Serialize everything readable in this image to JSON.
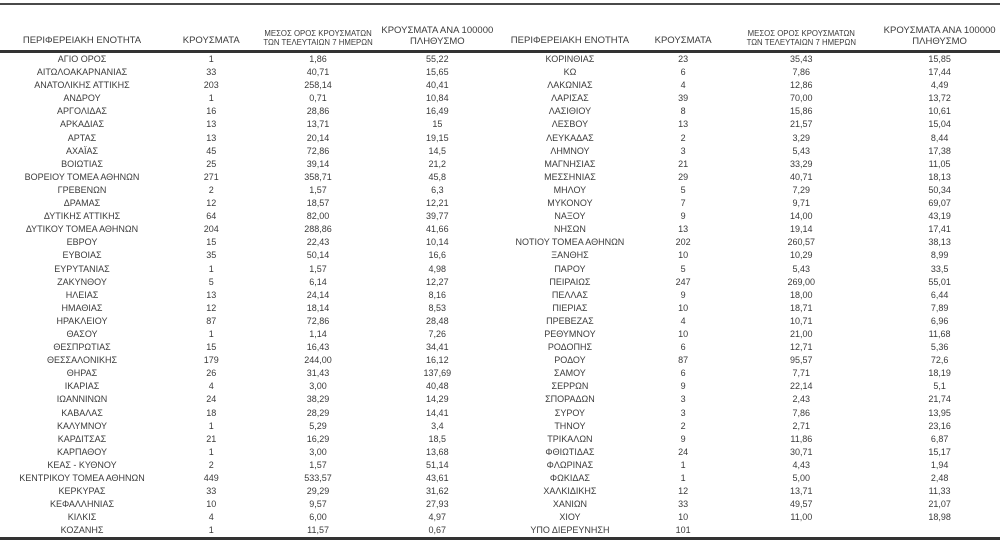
{
  "page": {
    "background_color": "#ffffff",
    "text_color": "#3b3b3b",
    "rule_color": "#333333"
  },
  "header": {
    "col1": "ΠΕΡΙΦΕΡΕΙΑΚΗ ΕΝΟΤΗΤΑ",
    "col2": "ΚΡΟΥΣΜΑΤΑ",
    "col3_line1": "ΜΕΣΟΣ ΟΡΟΣ ΚΡΟΥΣΜΑΤΩΝ",
    "col3_line2": "ΤΩΝ ΤΕΛΕΥΤΑΙΩΝ 7 ΗΜΕΡΩΝ",
    "col4_line1": "ΚΡΟΥΣΜΑΤΑ ΑΝΑ 100000",
    "col4_line2": "ΠΛΗΘΥΣΜΟ"
  },
  "tables": [
    {
      "rows": [
        [
          "ΑΓΙΟ ΟΡΟΣ",
          "1",
          "1,86",
          "55,22"
        ],
        [
          "ΑΙΤΩΛΟΑΚΑΡΝΑΝΙΑΣ",
          "33",
          "40,71",
          "15,65"
        ],
        [
          "ΑΝΑΤΟΛΙΚΗΣ ΑΤΤΙΚΗΣ",
          "203",
          "258,14",
          "40,41"
        ],
        [
          "ΑΝΔΡΟΥ",
          "1",
          "0,71",
          "10,84"
        ],
        [
          "ΑΡΓΟΛΙΔΑΣ",
          "16",
          "28,86",
          "16,49"
        ],
        [
          "ΑΡΚΑΔΙΑΣ",
          "13",
          "13,71",
          "15"
        ],
        [
          "ΑΡΤΑΣ",
          "13",
          "20,14",
          "19,15"
        ],
        [
          "ΑΧΑΪΑΣ",
          "45",
          "72,86",
          "14,5"
        ],
        [
          "ΒΟΙΩΤΙΑΣ",
          "25",
          "39,14",
          "21,2"
        ],
        [
          "ΒΟΡΕΙΟΥ ΤΟΜΕΑ ΑΘΗΝΩΝ",
          "271",
          "358,71",
          "45,8"
        ],
        [
          "ΓΡΕΒΕΝΩΝ",
          "2",
          "1,57",
          "6,3"
        ],
        [
          "ΔΡΑΜΑΣ",
          "12",
          "18,57",
          "12,21"
        ],
        [
          "ΔΥΤΙΚΗΣ ΑΤΤΙΚΗΣ",
          "64",
          "82,00",
          "39,77"
        ],
        [
          "ΔΥΤΙΚΟΥ ΤΟΜΕΑ ΑΘΗΝΩΝ",
          "204",
          "288,86",
          "41,66"
        ],
        [
          "ΕΒΡΟΥ",
          "15",
          "22,43",
          "10,14"
        ],
        [
          "ΕΥΒΟΙΑΣ",
          "35",
          "50,14",
          "16,6"
        ],
        [
          "ΕΥΡΥΤΑΝΙΑΣ",
          "1",
          "1,57",
          "4,98"
        ],
        [
          "ΖΑΚΥΝΘΟΥ",
          "5",
          "6,14",
          "12,27"
        ],
        [
          "ΗΛΕΙΑΣ",
          "13",
          "24,14",
          "8,16"
        ],
        [
          "ΗΜΑΘΙΑΣ",
          "12",
          "18,14",
          "8,53"
        ],
        [
          "ΗΡΑΚΛΕΙΟΥ",
          "87",
          "72,86",
          "28,48"
        ],
        [
          "ΘΑΣΟΥ",
          "1",
          "1,14",
          "7,26"
        ],
        [
          "ΘΕΣΠΡΩΤΙΑΣ",
          "15",
          "16,43",
          "34,41"
        ],
        [
          "ΘΕΣΣΑΛΟΝΙΚΗΣ",
          "179",
          "244,00",
          "16,12"
        ],
        [
          "ΘΗΡΑΣ",
          "26",
          "31,43",
          "137,69"
        ],
        [
          "ΙΚΑΡΙΑΣ",
          "4",
          "3,00",
          "40,48"
        ],
        [
          "ΙΩΑΝΝΙΝΩΝ",
          "24",
          "38,29",
          "14,29"
        ],
        [
          "ΚΑΒΑΛΑΣ",
          "18",
          "28,29",
          "14,41"
        ],
        [
          "ΚΑΛΥΜΝΟΥ",
          "1",
          "5,29",
          "3,4"
        ],
        [
          "ΚΑΡΔΙΤΣΑΣ",
          "21",
          "16,29",
          "18,5"
        ],
        [
          "ΚΑΡΠΑΘΟΥ",
          "1",
          "3,00",
          "13,68"
        ],
        [
          "ΚΕΑΣ - ΚΥΘΝΟΥ",
          "2",
          "1,57",
          "51,14"
        ],
        [
          "ΚΕΝΤΡΙΚΟΥ ΤΟΜΕΑ ΑΘΗΝΩΝ",
          "449",
          "533,57",
          "43,61"
        ],
        [
          "ΚΕΡΚΥΡΑΣ",
          "33",
          "29,29",
          "31,62"
        ],
        [
          "ΚΕΦΑΛΛΗΝΙΑΣ",
          "10",
          "9,57",
          "27,93"
        ],
        [
          "ΚΙΛΚΙΣ",
          "4",
          "6,00",
          "4,97"
        ],
        [
          "ΚΟΖΑΝΗΣ",
          "1",
          "11,57",
          "0,67"
        ]
      ]
    },
    {
      "rows": [
        [
          "ΚΟΡΙΝΘΙΑΣ",
          "23",
          "35,43",
          "15,85"
        ],
        [
          "ΚΩ",
          "6",
          "7,86",
          "17,44"
        ],
        [
          "ΛΑΚΩΝΙΑΣ",
          "4",
          "12,86",
          "4,49"
        ],
        [
          "ΛΑΡΙΣΑΣ",
          "39",
          "70,00",
          "13,72"
        ],
        [
          "ΛΑΣΙΘΙΟΥ",
          "8",
          "15,86",
          "10,61"
        ],
        [
          "ΛΕΣΒΟΥ",
          "13",
          "21,57",
          "15,04"
        ],
        [
          "ΛΕΥΚΑΔΑΣ",
          "2",
          "3,29",
          "8,44"
        ],
        [
          "ΛΗΜΝΟΥ",
          "3",
          "5,43",
          "17,38"
        ],
        [
          "ΜΑΓΝΗΣΙΑΣ",
          "21",
          "33,29",
          "11,05"
        ],
        [
          "ΜΕΣΣΗΝΙΑΣ",
          "29",
          "40,71",
          "18,13"
        ],
        [
          "ΜΗΛΟΥ",
          "5",
          "7,29",
          "50,34"
        ],
        [
          "ΜΥΚΟΝΟΥ",
          "7",
          "9,71",
          "69,07"
        ],
        [
          "ΝΑΞΟΥ",
          "9",
          "14,00",
          "43,19"
        ],
        [
          "ΝΗΣΩΝ",
          "13",
          "19,14",
          "17,41"
        ],
        [
          "ΝΟΤΙΟΥ ΤΟΜΕΑ ΑΘΗΝΩΝ",
          "202",
          "260,57",
          "38,13"
        ],
        [
          "ΞΑΝΘΗΣ",
          "10",
          "10,29",
          "8,99"
        ],
        [
          "ΠΑΡΟΥ",
          "5",
          "5,43",
          "33,5"
        ],
        [
          "ΠΕΙΡΑΙΩΣ",
          "247",
          "269,00",
          "55,01"
        ],
        [
          "ΠΕΛΛΑΣ",
          "9",
          "18,00",
          "6,44"
        ],
        [
          "ΠΙΕΡΙΑΣ",
          "10",
          "18,71",
          "7,89"
        ],
        [
          "ΠΡΕΒΕΖΑΣ",
          "4",
          "10,71",
          "6,96"
        ],
        [
          "ΡΕΘΥΜΝΟΥ",
          "10",
          "21,00",
          "11,68"
        ],
        [
          "ΡΟΔΟΠΗΣ",
          "6",
          "12,71",
          "5,36"
        ],
        [
          "ΡΟΔΟΥ",
          "87",
          "95,57",
          "72,6"
        ],
        [
          "ΣΑΜΟΥ",
          "6",
          "7,71",
          "18,19"
        ],
        [
          "ΣΕΡΡΩΝ",
          "9",
          "22,14",
          "5,1"
        ],
        [
          "ΣΠΟΡΑΔΩΝ",
          "3",
          "2,43",
          "21,74"
        ],
        [
          "ΣΥΡΟΥ",
          "3",
          "7,86",
          "13,95"
        ],
        [
          "ΤΗΝΟΥ",
          "2",
          "2,71",
          "23,16"
        ],
        [
          "ΤΡΙΚΑΛΩΝ",
          "9",
          "11,86",
          "6,87"
        ],
        [
          "ΦΘΙΩΤΙΔΑΣ",
          "24",
          "30,71",
          "15,17"
        ],
        [
          "ΦΛΩΡΙΝΑΣ",
          "1",
          "4,43",
          "1,94"
        ],
        [
          "ΦΩΚΙΔΑΣ",
          "1",
          "5,00",
          "2,48"
        ],
        [
          "ΧΑΛΚΙΔΙΚΗΣ",
          "12",
          "13,71",
          "11,33"
        ],
        [
          "ΧΑΝΙΩΝ",
          "33",
          "49,57",
          "21,07"
        ],
        [
          "ΧΙΟΥ",
          "10",
          "11,00",
          "18,98"
        ],
        [
          "ΥΠΟ ΔΙΕΡΕΥΝΗΣΗ",
          "101",
          "",
          ""
        ]
      ]
    }
  ]
}
